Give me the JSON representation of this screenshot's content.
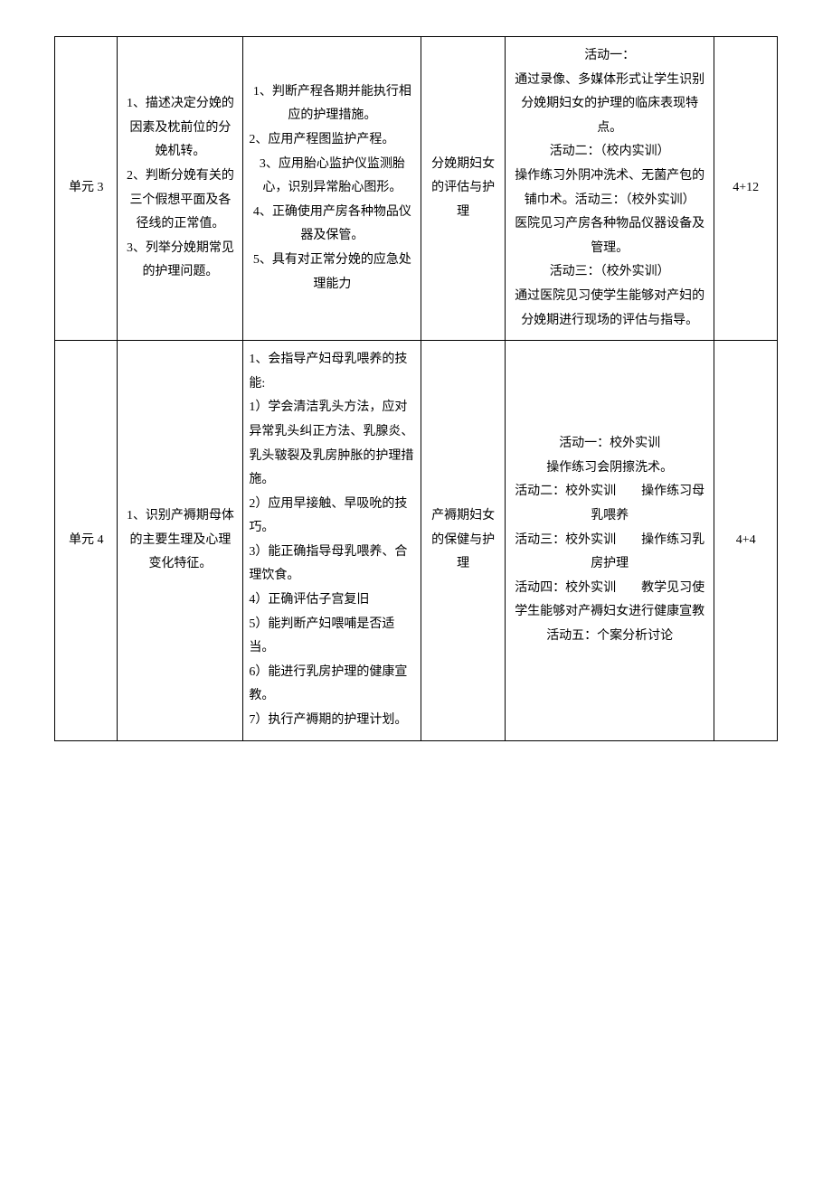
{
  "rows": [
    {
      "unit": "单元 3",
      "knowledge": [
        "1、描述决定分娩的因素及枕前位的分娩机转。",
        "2、判断分娩有关的三个假想平面及各径线的正常值。",
        "3、列举分娩期常见的护理问题。"
      ],
      "skill": [
        "1、判断产程各期并能执行相应的护理措施。",
        "2、应用产程图监护产程。",
        "",
        "3、应用胎心监护仪监测胎心，识别异常胎心图形。",
        "4、正确使用产房各种物品仪器及保管。",
        "5、具有对正常分娩的应急处理能力"
      ],
      "topic": "分娩期妇女的评估与护理",
      "activity": [
        "活动一：",
        "通过录像、多媒体形式让学生识别分娩期妇女的护理的临床表现特点。",
        "活动二：（校内实训）",
        "操作练习外阴冲洗术、无菌产包的铺巾术。活动三：（校外实训）",
        "医院见习产房各种物品仪器设备及管理。",
        "活动三：（校外实训）",
        "通过医院见习使学生能够对产妇的分娩期进行现场的评估与指导。"
      ],
      "hours": "4+12"
    },
    {
      "unit": "单元 4",
      "knowledge": [
        "1、识别产褥期母体的主要生理及心理变化特征。"
      ],
      "skill": [
        "1、会指导产妇母乳喂养的技能:",
        "1）学会清洁乳头方法，应对异常乳头纠正方法、乳腺炎、乳头皲裂及乳房肿胀的护理措施。",
        "2）应用早接触、早吸吮的技巧。",
        "3）能正确指导母乳喂养、合理饮食。",
        "4）正确评估子宫复旧",
        "5）能判断产妇喂哺是否适当。",
        "6）能进行乳房护理的健康宣教。",
        "7）执行产褥期的护理计划。"
      ],
      "topic": "产褥期妇女的保健与护理",
      "activity": [
        "活动一：校外实训",
        "操作练习会阴擦洗术。",
        "活动二：校外实训　　操作练习母乳喂养",
        "活动三：校外实训　　操作练习乳房护理",
        "活动四：校外实训　　教学见习使学生能够对产褥妇女进行健康宣教",
        "活动五：个案分析讨论"
      ],
      "hours": "4+4"
    }
  ]
}
